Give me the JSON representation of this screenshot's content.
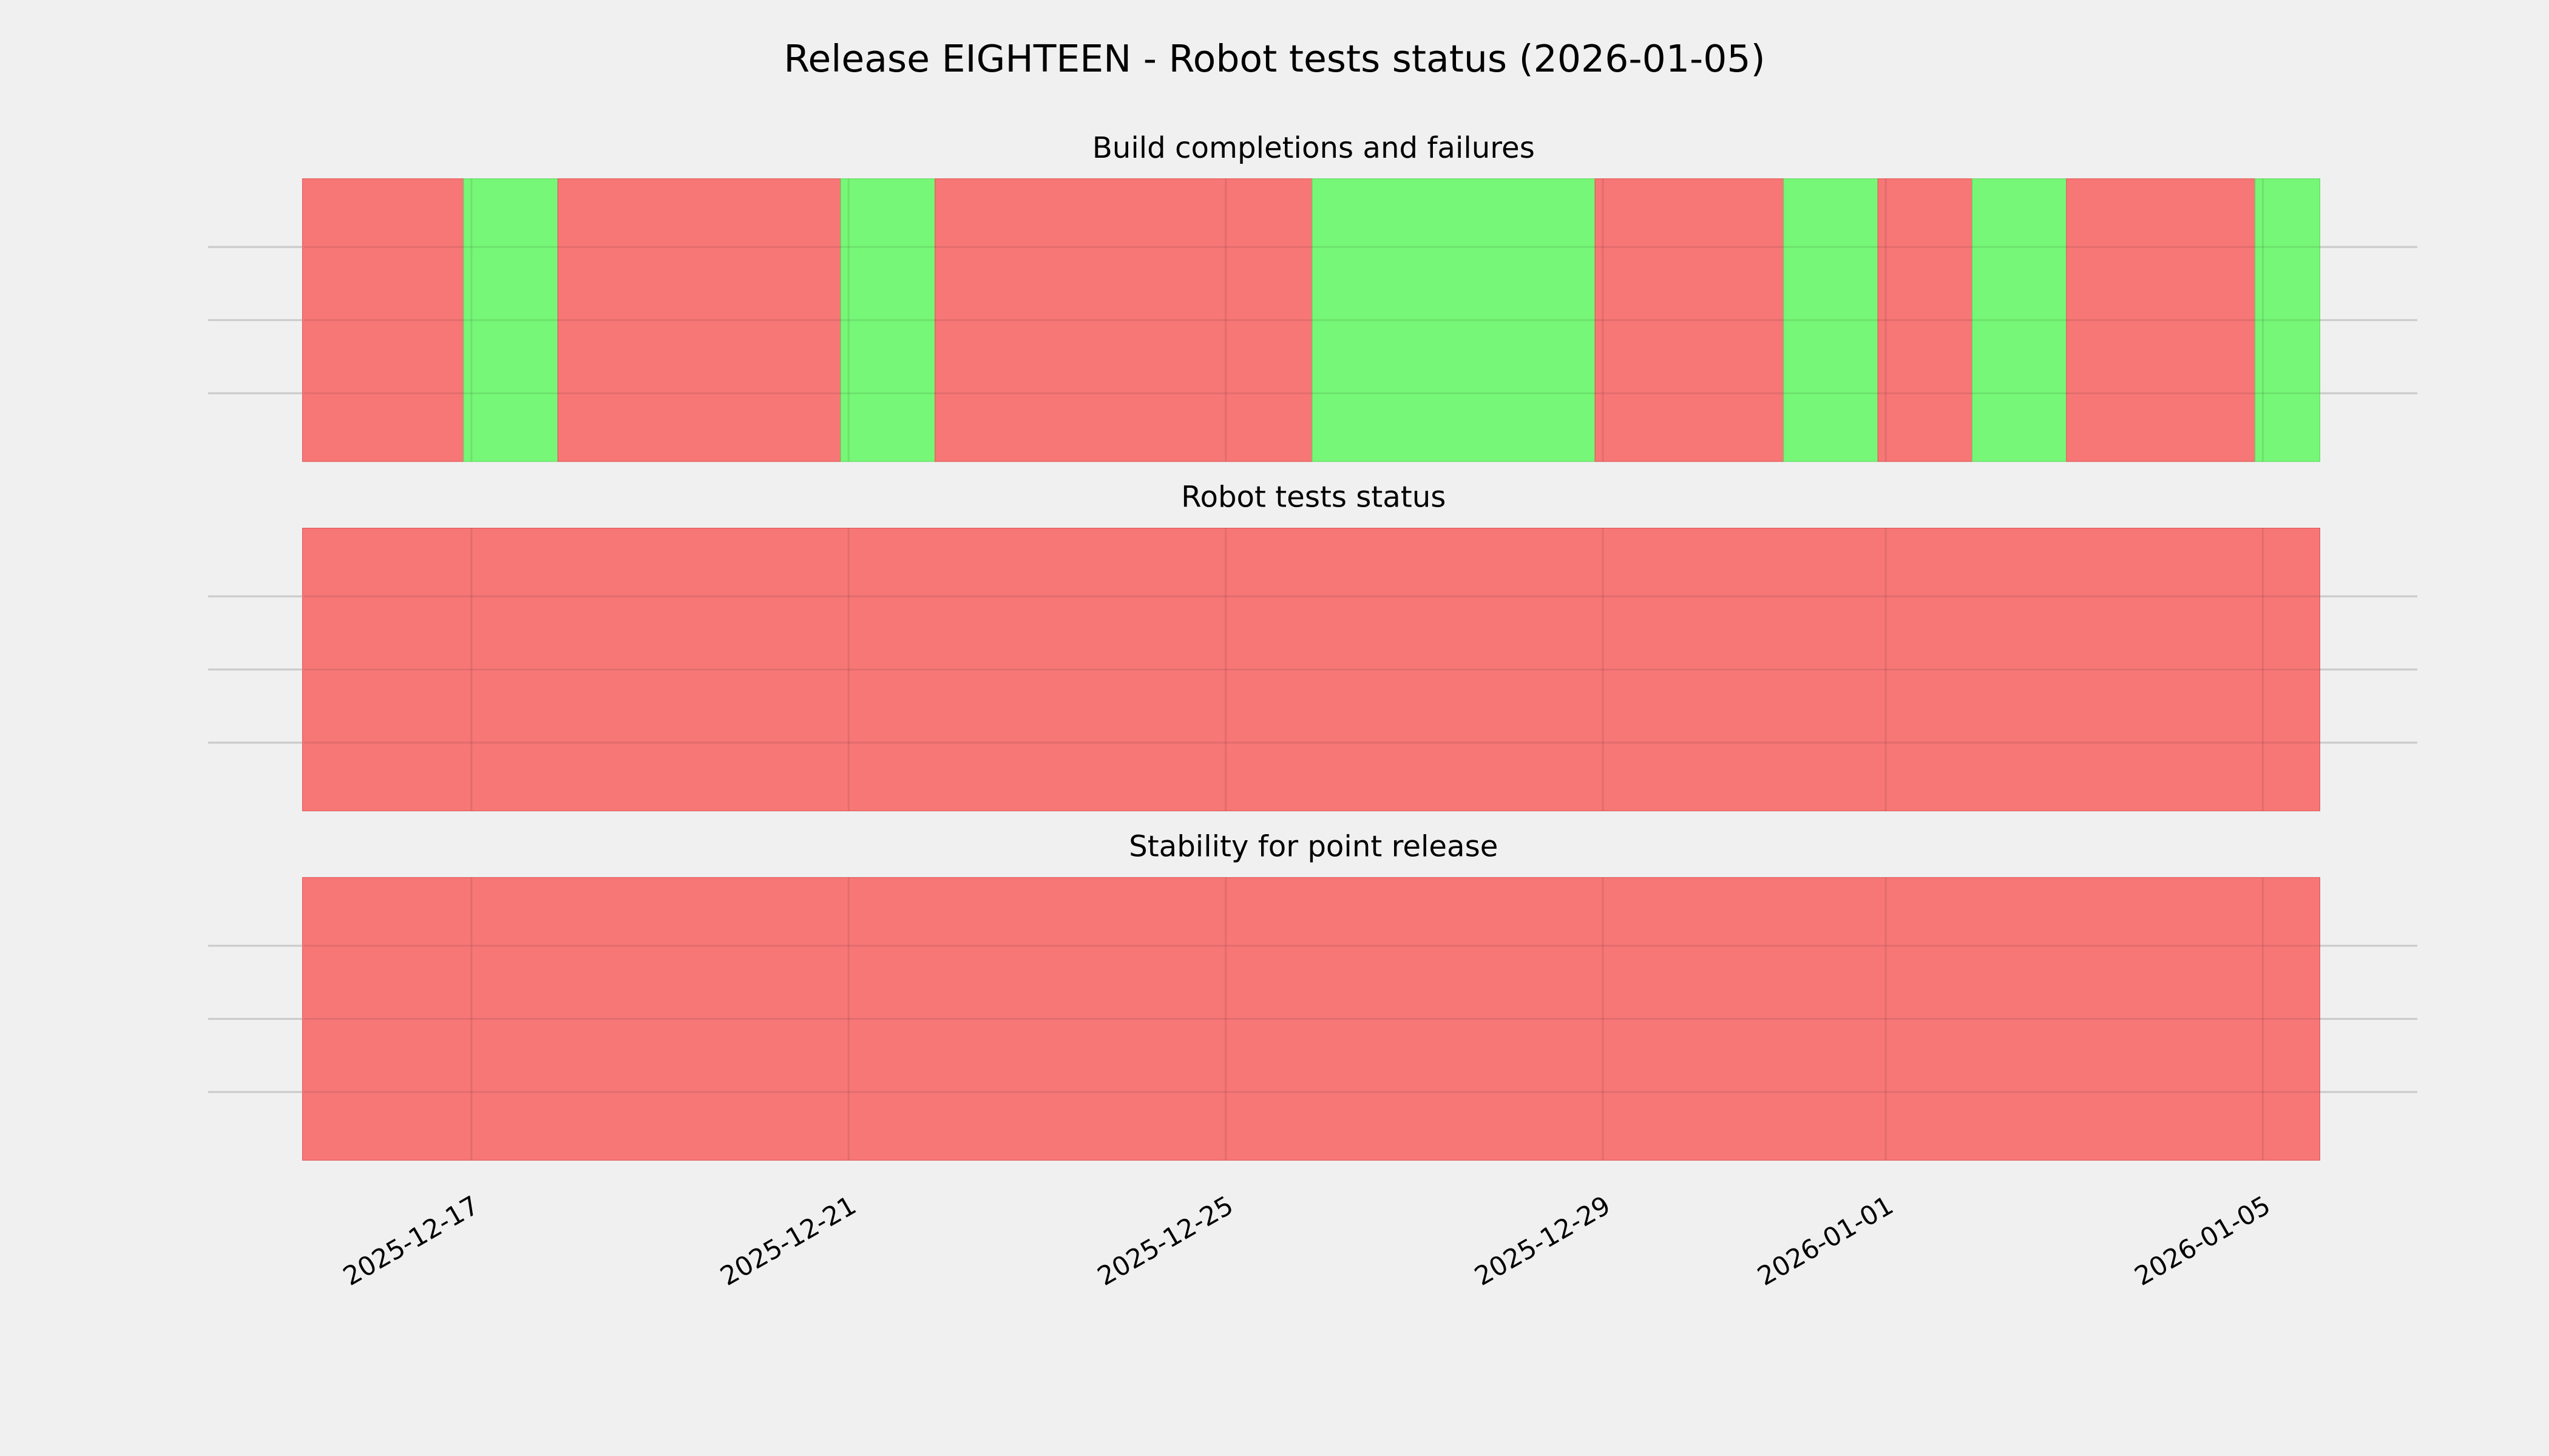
{
  "title": "Release EIGHTEEN - Robot tests status (2026-01-05)",
  "colors": {
    "background": "#f0f0f0",
    "fail": "#f77777",
    "pass": "#77f777",
    "grid": "#cbcbcb"
  },
  "chart_data": [
    {
      "type": "area",
      "title": "Build completions and failures",
      "xlim": [
        "2025-12-15T05:00",
        "2026-01-05T14:30"
      ],
      "grid": true,
      "segments": [
        {
          "start": "2025-12-15T05:00",
          "end": "2025-12-16T22:00",
          "status": "fail"
        },
        {
          "start": "2025-12-16T22:00",
          "end": "2025-12-17T22:00",
          "status": "pass"
        },
        {
          "start": "2025-12-17T22:00",
          "end": "2025-12-20T22:00",
          "status": "fail"
        },
        {
          "start": "2025-12-20T22:00",
          "end": "2025-12-21T22:00",
          "status": "pass"
        },
        {
          "start": "2025-12-21T22:00",
          "end": "2025-12-25T22:00",
          "status": "fail"
        },
        {
          "start": "2025-12-25T22:00",
          "end": "2025-12-28T22:00",
          "status": "pass"
        },
        {
          "start": "2025-12-28T22:00",
          "end": "2025-12-30T22:00",
          "status": "fail"
        },
        {
          "start": "2025-12-30T22:00",
          "end": "2025-12-31T22:00",
          "status": "pass"
        },
        {
          "start": "2025-12-31T22:00",
          "end": "2026-01-01T22:00",
          "status": "fail"
        },
        {
          "start": "2026-01-01T22:00",
          "end": "2026-01-02T22:00",
          "status": "pass"
        },
        {
          "start": "2026-01-02T22:00",
          "end": "2026-01-04T22:00",
          "status": "fail"
        },
        {
          "start": "2026-01-04T22:00",
          "end": "2026-01-05T14:30",
          "status": "pass"
        }
      ]
    },
    {
      "type": "area",
      "title": "Robot tests status",
      "xlim": [
        "2025-12-15T05:00",
        "2026-01-05T14:30"
      ],
      "grid": true,
      "segments": [
        {
          "start": "2025-12-15T05:00",
          "end": "2026-01-05T14:30",
          "status": "fail"
        }
      ]
    },
    {
      "type": "area",
      "title": "Stability for point release",
      "xlim": [
        "2025-12-15T05:00",
        "2026-01-05T14:30"
      ],
      "grid": true,
      "segments": [
        {
          "start": "2025-12-15T05:00",
          "end": "2026-01-05T14:30",
          "status": "fail"
        }
      ]
    }
  ],
  "x_ticks": [
    "2025-12-17",
    "2025-12-21",
    "2025-12-25",
    "2025-12-29",
    "2026-01-01",
    "2026-01-05"
  ]
}
